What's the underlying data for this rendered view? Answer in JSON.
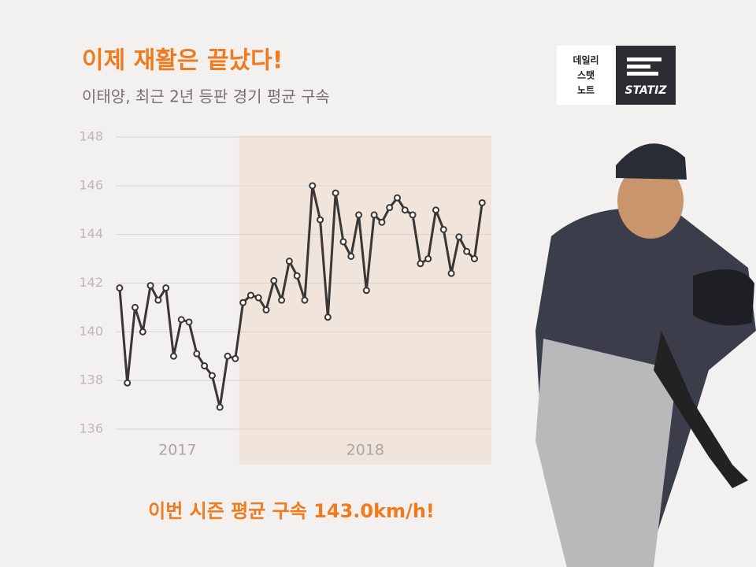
{
  "header": {
    "title": "이제 재활은 끝났다!",
    "subtitle": "이태양, 최근 2년 등판 경기 평균 구속"
  },
  "logo": {
    "lines": [
      "데일리",
      "스탯",
      "노트"
    ],
    "brand": "STATIZ"
  },
  "footer": "이번 시즌 평균 구속 143.0km/h!",
  "chart_data": {
    "type": "line",
    "color": "#3a3633",
    "grid": true,
    "ylim": [
      136,
      148
    ],
    "yticks": [
      136,
      138,
      140,
      142,
      144,
      146,
      148
    ],
    "xlim": [
      0.5,
      49.2
    ],
    "series": [
      {
        "name": "2017",
        "x": [
          1,
          2,
          3,
          4,
          5,
          6,
          7,
          8,
          9,
          10,
          11,
          12,
          13,
          14,
          15,
          16
        ],
        "values": [
          141.8,
          137.9,
          141.0,
          140.0,
          141.9,
          141.3,
          141.8,
          139.0,
          140.5,
          140.4,
          139.1,
          138.6,
          138.2,
          136.9,
          139.0,
          138.9
        ]
      },
      {
        "name": "2018",
        "x": [
          17,
          18,
          19,
          20,
          21,
          22,
          23,
          24,
          25,
          26,
          27,
          28,
          29,
          30,
          31,
          32,
          33,
          34,
          35,
          36,
          37,
          38,
          39,
          40,
          41,
          42,
          43,
          44,
          45,
          46,
          47,
          48
        ],
        "values": [
          141.2,
          141.5,
          141.4,
          140.9,
          142.1,
          141.3,
          142.9,
          142.3,
          141.3,
          146.0,
          144.6,
          140.6,
          145.7,
          143.7,
          143.1,
          144.8,
          141.7,
          144.8,
          144.5,
          145.1,
          145.5,
          145.0,
          144.8,
          142.8,
          143.0,
          145.0,
          144.2,
          142.4,
          143.9,
          143.3,
          143.0,
          145.3
        ]
      }
    ]
  }
}
